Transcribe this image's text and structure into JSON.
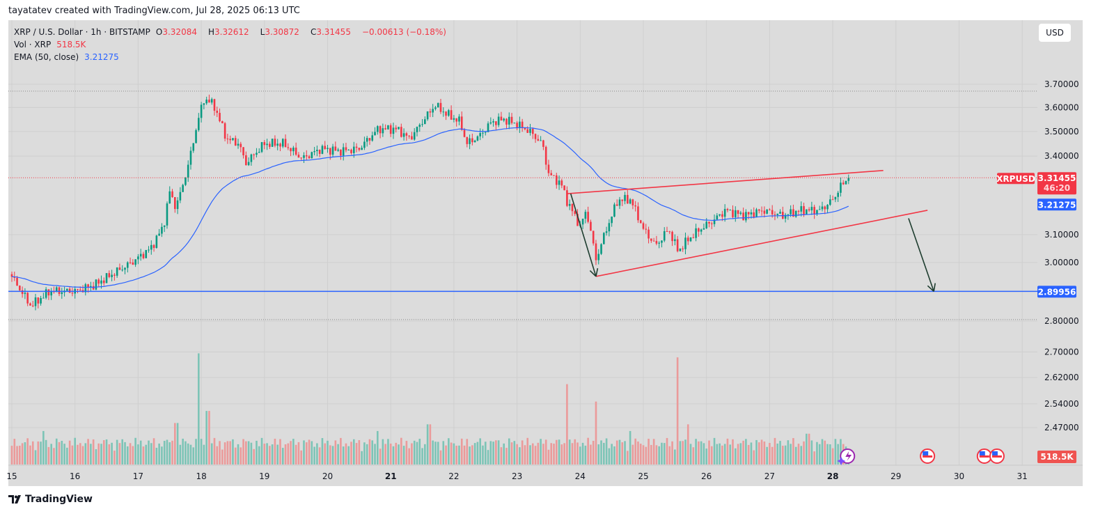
{
  "credit": "tayatatev created with TradingView.com, Jul 28, 2025 06:13 UTC",
  "legend": {
    "symbol": "XRP / U.S. Dollar · 1h · BITSTAMP",
    "o_label": "O",
    "o": "3.32084",
    "h_label": "H",
    "h": "3.32612",
    "l_label": "L",
    "l": "3.30872",
    "c_label": "C",
    "c": "3.31455",
    "change": "−0.00613 (−0.18%)",
    "vol_label": "Vol · XRP",
    "vol": "518.5K",
    "ema_label": "EMA (50, close)",
    "ema": "3.21275"
  },
  "currency_button": "USD",
  "logo": "TradingView",
  "colors": {
    "up": "#089981",
    "down": "#f23645",
    "ema": "#2962ff",
    "support": "#2962ff",
    "trendline": "#f23645",
    "arrow": "#1e3d2f",
    "background": "#dcdcdc"
  },
  "chart_data": {
    "type": "candlestick",
    "interval": "1h",
    "scale": "log",
    "grid": true,
    "ylim": [
      2.8,
      3.7
    ],
    "price_ticks": [
      "3.70000",
      "3.60000",
      "3.50000",
      "3.40000",
      "3.10000",
      "3.00000",
      "2.80000",
      "2.70000",
      "2.62000",
      "2.54000",
      "2.47000"
    ],
    "tick_values": [
      3.7,
      3.6,
      3.5,
      3.4,
      3.1,
      3.0,
      2.8,
      2.7,
      2.62,
      2.54,
      2.47
    ],
    "x_ticks": [
      {
        "label": "15",
        "day": 15
      },
      {
        "label": "16",
        "day": 16
      },
      {
        "label": "17",
        "day": 17
      },
      {
        "label": "18",
        "day": 18
      },
      {
        "label": "19",
        "day": 19
      },
      {
        "label": "20",
        "day": 20
      },
      {
        "label": "21",
        "day": 21,
        "bold": true
      },
      {
        "label": "22",
        "day": 22
      },
      {
        "label": "23",
        "day": 23
      },
      {
        "label": "24",
        "day": 24
      },
      {
        "label": "25",
        "day": 25
      },
      {
        "label": "26",
        "day": 26
      },
      {
        "label": "27",
        "day": 27
      },
      {
        "label": "28",
        "day": 28,
        "bold": true
      },
      {
        "label": "29",
        "day": 29
      },
      {
        "label": "30",
        "day": 30
      },
      {
        "label": "31",
        "day": 31
      }
    ],
    "close_path": [
      [
        15.0,
        2.95
      ],
      [
        15.3,
        2.85
      ],
      [
        15.6,
        2.9
      ],
      [
        16.0,
        2.9
      ],
      [
        16.3,
        2.92
      ],
      [
        16.6,
        2.96
      ],
      [
        16.9,
        3.0
      ],
      [
        17.2,
        3.05
      ],
      [
        17.4,
        3.13
      ],
      [
        17.5,
        3.26
      ],
      [
        17.6,
        3.2
      ],
      [
        17.7,
        3.28
      ],
      [
        17.8,
        3.37
      ],
      [
        17.95,
        3.55
      ],
      [
        18.05,
        3.64
      ],
      [
        18.2,
        3.61
      ],
      [
        18.4,
        3.47
      ],
      [
        18.6,
        3.45
      ],
      [
        18.7,
        3.37
      ],
      [
        19.0,
        3.45
      ],
      [
        19.3,
        3.45
      ],
      [
        19.6,
        3.39
      ],
      [
        19.9,
        3.43
      ],
      [
        20.2,
        3.42
      ],
      [
        20.5,
        3.43
      ],
      [
        20.8,
        3.51
      ],
      [
        21.1,
        3.51
      ],
      [
        21.3,
        3.47
      ],
      [
        21.5,
        3.54
      ],
      [
        21.7,
        3.61
      ],
      [
        21.9,
        3.57
      ],
      [
        22.1,
        3.54
      ],
      [
        22.2,
        3.45
      ],
      [
        22.4,
        3.48
      ],
      [
        22.6,
        3.54
      ],
      [
        22.8,
        3.55
      ],
      [
        23.0,
        3.53
      ],
      [
        23.2,
        3.5
      ],
      [
        23.4,
        3.45
      ],
      [
        23.5,
        3.33
      ],
      [
        23.7,
        3.29
      ],
      [
        23.8,
        3.22
      ],
      [
        24.0,
        3.13
      ],
      [
        24.1,
        3.19
      ],
      [
        24.25,
        3.01
      ],
      [
        24.4,
        3.11
      ],
      [
        24.6,
        3.23
      ],
      [
        24.8,
        3.23
      ],
      [
        25.0,
        3.12
      ],
      [
        25.2,
        3.06
      ],
      [
        25.4,
        3.12
      ],
      [
        25.55,
        3.04
      ],
      [
        25.7,
        3.08
      ],
      [
        25.9,
        3.12
      ],
      [
        26.1,
        3.15
      ],
      [
        26.3,
        3.19
      ],
      [
        26.6,
        3.17
      ],
      [
        26.9,
        3.19
      ],
      [
        27.2,
        3.17
      ],
      [
        27.5,
        3.19
      ],
      [
        27.8,
        3.19
      ],
      [
        28.0,
        3.23
      ],
      [
        28.15,
        3.29
      ],
      [
        28.25,
        3.31455
      ]
    ],
    "volume_spikes_k": [
      [
        15.5,
        2500
      ],
      [
        17.6,
        3100
      ],
      [
        17.95,
        8300
      ],
      [
        18.1,
        4000
      ],
      [
        20.8,
        2500
      ],
      [
        21.6,
        3000
      ],
      [
        23.8,
        6000
      ],
      [
        24.25,
        4700
      ],
      [
        24.8,
        2500
      ],
      [
        25.55,
        8000
      ],
      [
        25.7,
        3000
      ],
      [
        27.6,
        2300
      ]
    ],
    "last_volume": "518.5K",
    "ema_period": 50,
    "current_price": {
      "symbol": "XRPUSD",
      "value": "3.31455",
      "countdown": "46:20"
    },
    "ema_label": "3.21275",
    "support": {
      "value": 2.89956,
      "label": "2.89956"
    },
    "dotted_levels": [
      3.67,
      2.805
    ],
    "trendlines": [
      {
        "from": [
          23.8,
          3.253
        ],
        "to": [
          28.8,
          3.343
        ]
      },
      {
        "from": [
          24.25,
          2.951
        ],
        "to": [
          29.5,
          3.19
        ]
      }
    ],
    "arrows": [
      {
        "from": [
          23.85,
          3.253
        ],
        "to": [
          24.25,
          2.951
        ]
      },
      {
        "from": [
          29.2,
          3.16
        ],
        "to": [
          29.6,
          2.89956
        ]
      }
    ],
    "event_markers": [
      {
        "day": 28.2,
        "type": "lightning-icon"
      },
      {
        "day": 29.5,
        "type": "us-flag-icon"
      },
      {
        "day": 30.4,
        "type": "us-flag-icon"
      },
      {
        "day": 30.6,
        "type": "us-flag-icon"
      }
    ]
  }
}
